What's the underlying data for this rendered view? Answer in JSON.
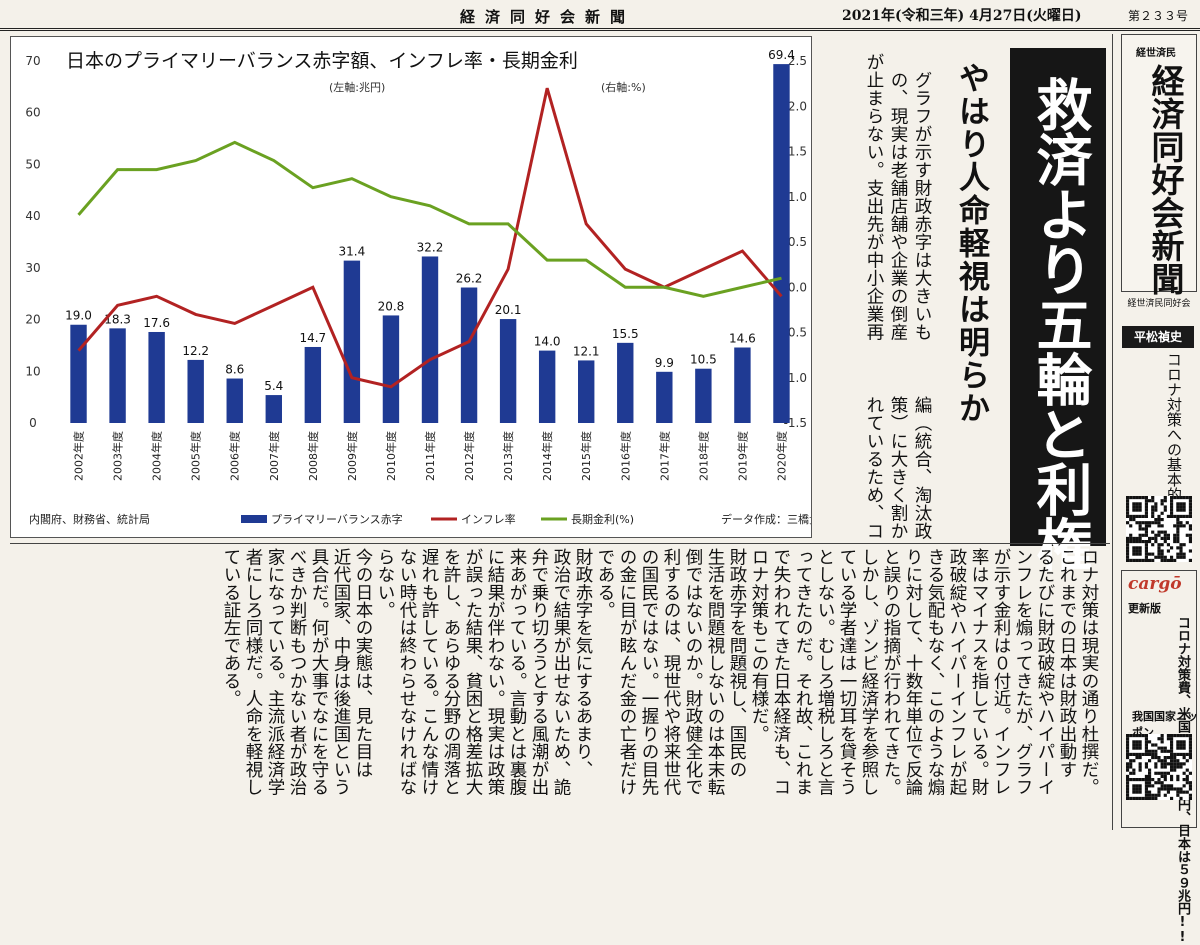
{
  "masthead": {
    "title": "経済同好会新聞",
    "date": "2021年(令和三年) 4月27日(火曜日)",
    "issue": "第２３３号"
  },
  "chart_data": {
    "type": "bar",
    "title": "日本のプライマリーバランス赤字額、インフレ率・長期金利",
    "left_axis_unit": "(左軸:兆円)",
    "right_axis_unit": "(右軸:%)",
    "categories": [
      "2002年度",
      "2003年度",
      "2004年度",
      "2005年度",
      "2006年度",
      "2007年度",
      "2008年度",
      "2009年度",
      "2010年度",
      "2011年度",
      "2012年度",
      "2013年度",
      "2014年度",
      "2015年度",
      "2016年度",
      "2017年度",
      "2018年度",
      "2019年度",
      "2020年度"
    ],
    "series": [
      {
        "name": "プライマリーバランス赤字",
        "axis": "left",
        "type": "bar",
        "color": "#1f3a93",
        "values": [
          19.0,
          18.3,
          17.6,
          12.2,
          8.6,
          5.4,
          14.7,
          31.4,
          20.8,
          32.2,
          26.2,
          20.1,
          14.0,
          12.1,
          15.5,
          9.9,
          10.5,
          14.6,
          69.4
        ]
      },
      {
        "name": "インフレ率",
        "axis": "right",
        "type": "line",
        "color": "#b22222",
        "values": [
          -0.7,
          -0.2,
          -0.1,
          -0.3,
          -0.4,
          -0.2,
          0.0,
          -1.0,
          -1.1,
          -0.8,
          -0.6,
          0.2,
          2.2,
          0.7,
          0.2,
          0.0,
          0.2,
          0.4,
          -0.1
        ]
      },
      {
        "name": "長期金利(%)",
        "axis": "right",
        "type": "line",
        "color": "#6aa121",
        "values": [
          0.8,
          1.3,
          1.3,
          1.4,
          1.6,
          1.4,
          1.1,
          1.2,
          1.0,
          0.9,
          0.7,
          0.7,
          0.3,
          0.3,
          0.0,
          0.0,
          -0.1,
          0.0,
          0.1
        ]
      }
    ],
    "left_ylim": [
      0,
      70
    ],
    "left_ticks": [
      "0",
      "10",
      "20",
      "30",
      "40",
      "50",
      "60",
      "70"
    ],
    "right_ylim": [
      -1.5,
      2.5
    ],
    "right_ticks": [
      "-1.5",
      "-1.0",
      "-0.5",
      "0.0",
      "0.5",
      "1.0",
      "1.5",
      "2.0",
      "2.5"
    ],
    "bar_labels": [
      "19.0",
      "18.3",
      "17.6",
      "12.2",
      "8.6",
      "5.4",
      "14.7",
      "31.4",
      "20.8",
      "32.2",
      "26.2",
      "20.1",
      "14.0",
      "12.1",
      "15.5",
      "9.9",
      "10.5",
      "14.6",
      "69.4"
    ],
    "source": "内閣府、財務省、統計局",
    "credit": "データ作成：三橋貴明"
  },
  "article": {
    "headline": "救済より五輪と利権",
    "subhead": "やはり人命軽視は明らか",
    "intro_columns": [
      "グラフが示す財政赤字は大きいも",
      "の、現実は老舗店舗や企業の倒産",
      "が止まらない。支出先が中小企業再"
    ],
    "intro_bottom": [
      "編（統合、淘汰政",
      "策）に大きく割か",
      "れているため、コ"
    ],
    "body_columns": [
      "ロナ対策は現実の通り杜撰だ。",
      "これまでの日本は財政出動す",
      "るたびに財政破綻やハイパーイ",
      "ンフレを煽ってきたが、グラフ",
      "が示す金利は０付近。インフレ",
      "率はマイナスを指している。財",
      "政破綻やハイパーインフレが起",
      "きる気配もなく、このような煽",
      "りに対して、十数年単位で反論",
      "と誤りの指摘が行われてきた。",
      "しかし、ゾンビ経済学を参照し",
      "ている学者達は一切耳を貸そう",
      "としない。むしろ増税しろと言",
      "ってきたのだ。それ故、これま",
      "で失われてきた日本経済も、コ",
      "ロナ対策もこの有様だ。",
      "財政赤字を問題視し、国民の",
      "生活を問題視しないのは本末転",
      "倒ではないのか。財政健全化で",
      "利するのは、現世代や将来世代",
      "の国民ではない。一握りの目先",
      "の金に目が眩んだ金の亡者だけ",
      "である。",
      "財政赤字を気にするあまり、",
      "政治で結果が出せないため、詭",
      "弁で乗り切ろうとする風潮が出",
      "来あがっている。言動とは裏腹",
      "に結果が伴わない。現実は政策",
      "が誤った結果、貧困と格差拡大",
      "を許し、あらゆる分野の凋落と",
      "遅れも許している。こんな情け",
      "ない時代は終わらせなければな",
      "らない。",
      "今の日本の実態は、見た目は",
      "近代国家、中身は後進国という",
      "具合だ。何が大事でなにを守る",
      "べきか判断もつかない者が政治",
      "家になっている。主流派経済学",
      "者にしろ同様だ。人命を軽視し",
      "ている証左である。"
    ]
  },
  "sidebar": {
    "logo_small": "経世済民",
    "logo_main": "経済同好会新聞",
    "logo_caption": "経世済民同好会",
    "author": "平松禎史",
    "author_topic": "コロナ対策への基本的な考え方",
    "cargo_logo": "cargō",
    "cargo_badge": "更新版",
    "cargo_text": "コロナ対策費、米国は６３７兆円、日本は５９兆円!!",
    "cargo_ok": "我国国家ニッポン"
  }
}
